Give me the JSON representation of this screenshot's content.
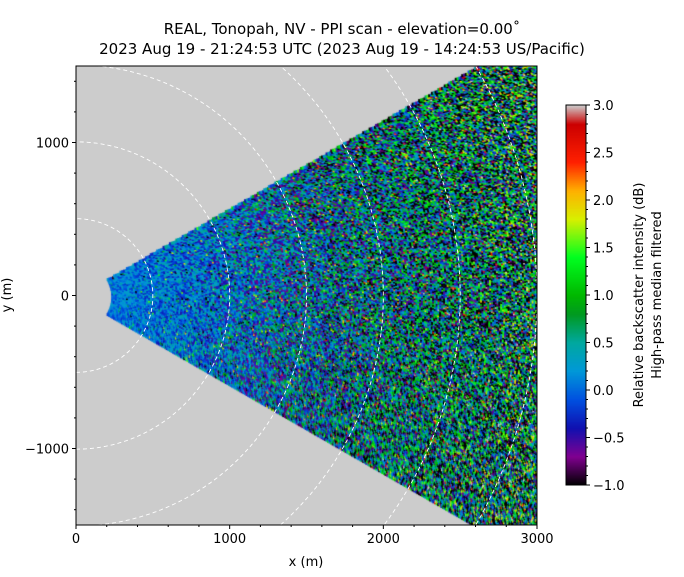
{
  "chart_data": {
    "type": "heatmap",
    "title": "REAL, Tonopah, NV - PPI scan - elevation=0.00˚",
    "subtitle": "2023 Aug 19 - 21:24:53 UTC (2023 Aug 19 - 14:24:53 US/Pacific)",
    "xlabel": "x (m)",
    "ylabel": "y (m)",
    "xlim": [
      0,
      3000
    ],
    "ylim": [
      -1500,
      1500
    ],
    "xticks": [
      {
        "v": 0,
        "label": "0"
      },
      {
        "v": 1000,
        "label": "1000"
      },
      {
        "v": 2000,
        "label": "2000"
      },
      {
        "v": 3000,
        "label": "3000"
      }
    ],
    "yticks": [
      {
        "v": -1000,
        "label": "−1000"
      },
      {
        "v": 0,
        "label": "0"
      },
      {
        "v": 1000,
        "label": "1000"
      }
    ],
    "scan": {
      "azimuth_half_width_deg": 30,
      "min_range_m": 230,
      "max_range_m": 3400,
      "range_rings_m": [
        500,
        1000,
        1500,
        2000,
        2500,
        3000
      ]
    },
    "background_color": "#cccccc",
    "colorbar": {
      "label_line1": "Relative backscatter intensity (dB)",
      "label_line2": "High-pass median filtered",
      "range": [
        -1.0,
        3.0
      ],
      "ticks": [
        {
          "v": -1.0,
          "label": "−1.0"
        },
        {
          "v": -0.5,
          "label": "−0.5"
        },
        {
          "v": 0.0,
          "label": "0.0"
        },
        {
          "v": 0.5,
          "label": "0.5"
        },
        {
          "v": 1.0,
          "label": "1.0"
        },
        {
          "v": 1.5,
          "label": "1.5"
        },
        {
          "v": 2.0,
          "label": "2.0"
        },
        {
          "v": 2.5,
          "label": "2.5"
        },
        {
          "v": 3.0,
          "label": "3.0"
        }
      ],
      "colormap": [
        [
          -1.0,
          "#000000"
        ],
        [
          -0.7,
          "#800090"
        ],
        [
          -0.4,
          "#1010b0"
        ],
        [
          -0.1,
          "#0050e0"
        ],
        [
          0.2,
          "#0098d8"
        ],
        [
          0.5,
          "#00a8a0"
        ],
        [
          0.8,
          "#009a20"
        ],
        [
          1.0,
          "#00b800"
        ],
        [
          1.4,
          "#00ff20"
        ],
        [
          1.8,
          "#d8f000"
        ],
        [
          2.1,
          "#ffb000"
        ],
        [
          2.4,
          "#ff2000"
        ],
        [
          2.8,
          "#cc0000"
        ],
        [
          3.0,
          "#cccccc"
        ]
      ]
    }
  }
}
